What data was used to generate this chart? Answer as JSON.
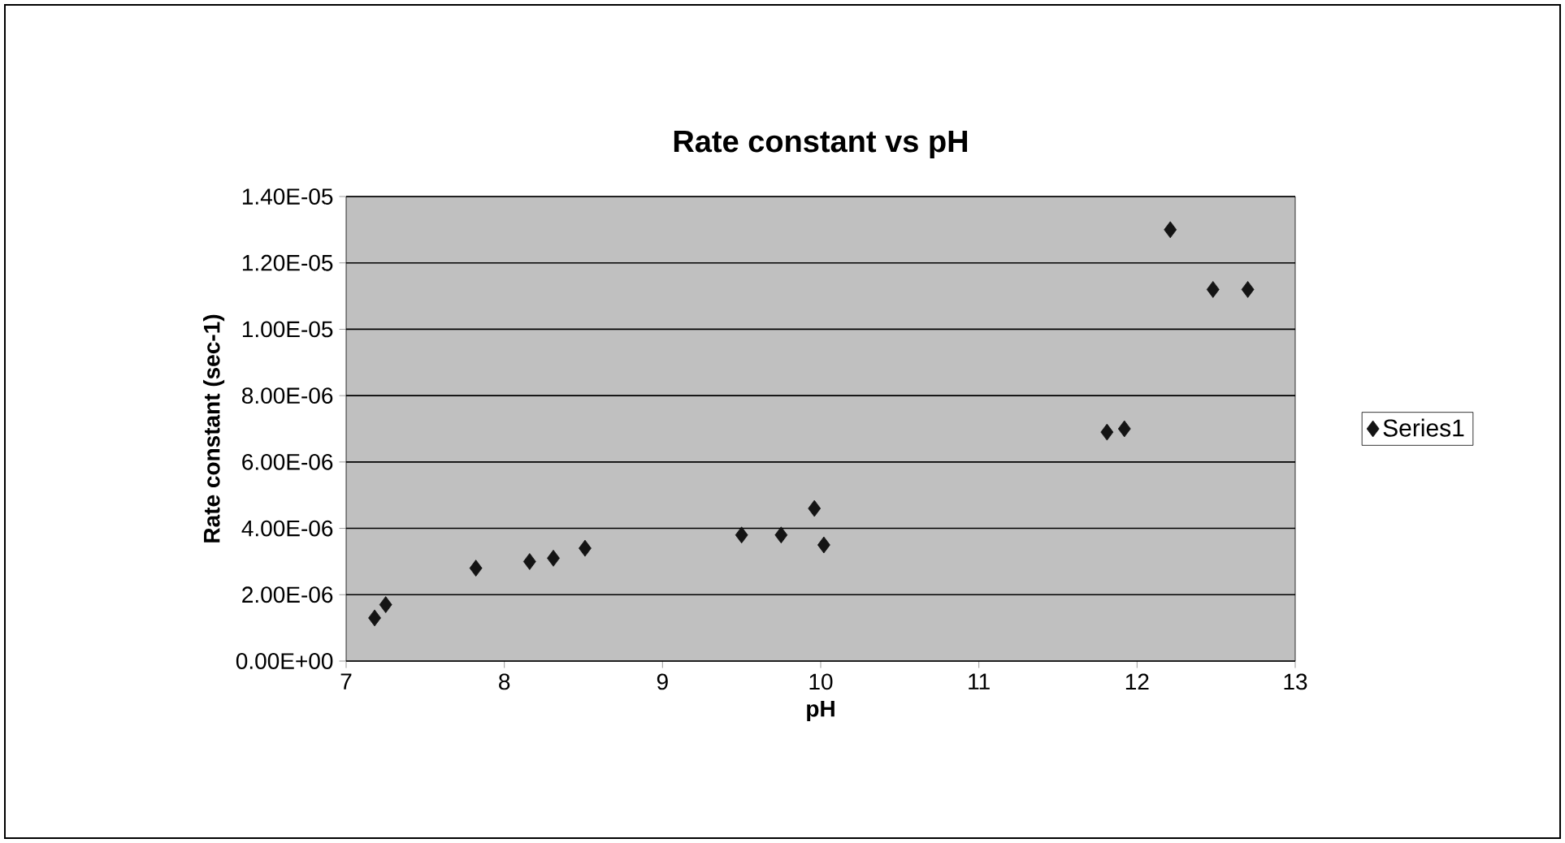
{
  "chart_data": {
    "type": "scatter",
    "title": "Rate constant vs pH",
    "xlabel": "pH",
    "ylabel": "Rate constant (sec-1)",
    "x": [
      7.18,
      7.25,
      7.82,
      8.16,
      8.31,
      8.51,
      9.5,
      9.75,
      9.96,
      10.02,
      11.81,
      11.92,
      12.21,
      12.48,
      12.7
    ],
    "series": [
      {
        "name": "Series1",
        "color": "#141414",
        "values": [
          1.3e-06,
          1.7e-06,
          2.8e-06,
          3e-06,
          3.1e-06,
          3.4e-06,
          3.8e-06,
          3.8e-06,
          4.6e-06,
          3.5e-06,
          6.9e-06,
          7e-06,
          1.3e-05,
          1.12e-05,
          1.12e-05
        ]
      }
    ],
    "xlim": [
      7,
      13
    ],
    "xticks": [
      7,
      8,
      9,
      10,
      11,
      12,
      13
    ],
    "ylim": [
      0,
      1.4e-05
    ],
    "yticks": [
      {
        "value": 0,
        "label": "0.00E+00"
      },
      {
        "value": 2e-06,
        "label": "2.00E-06"
      },
      {
        "value": 4e-06,
        "label": "4.00E-06"
      },
      {
        "value": 6e-06,
        "label": "6.00E-06"
      },
      {
        "value": 8e-06,
        "label": "8.00E-06"
      },
      {
        "value": 1e-05,
        "label": "1.00E-05"
      },
      {
        "value": 1.2e-05,
        "label": "1.20E-05"
      },
      {
        "value": 1.4e-05,
        "label": "1.40E-05"
      }
    ],
    "grid": "y",
    "legend": "right",
    "marker": "diamond"
  }
}
